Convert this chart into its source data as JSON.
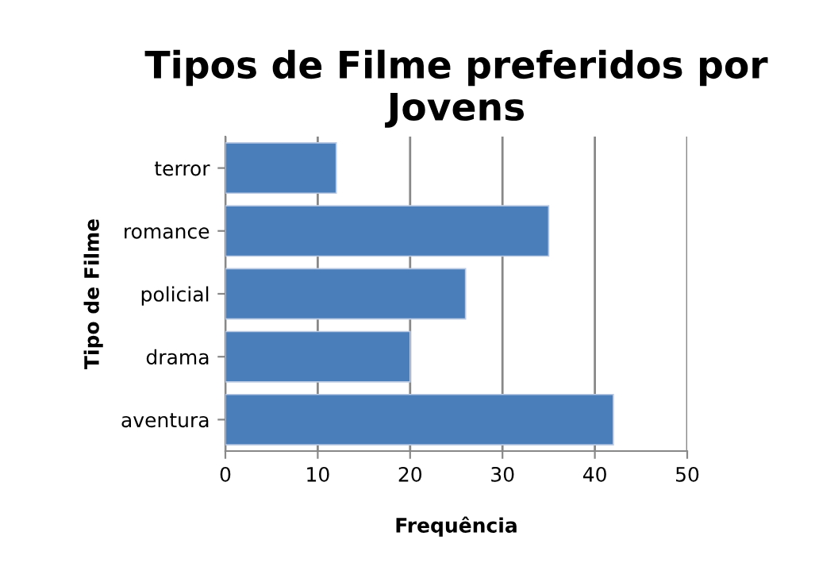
{
  "chart_data": {
    "type": "bar",
    "orientation": "horizontal",
    "title": "Tipos de Filme preferidos por Jovens",
    "xlabel": "Frequência",
    "ylabel": "Tipo de Filme",
    "categories": [
      "terror",
      "romance",
      "policial",
      "drama",
      "aventura"
    ],
    "values": [
      12,
      35,
      26,
      20,
      42
    ],
    "color": "#4a7ebb",
    "xlim": [
      0,
      50
    ],
    "xticks": [
      0,
      10,
      20,
      30,
      40,
      50
    ],
    "grid": "x",
    "legend": false
  }
}
